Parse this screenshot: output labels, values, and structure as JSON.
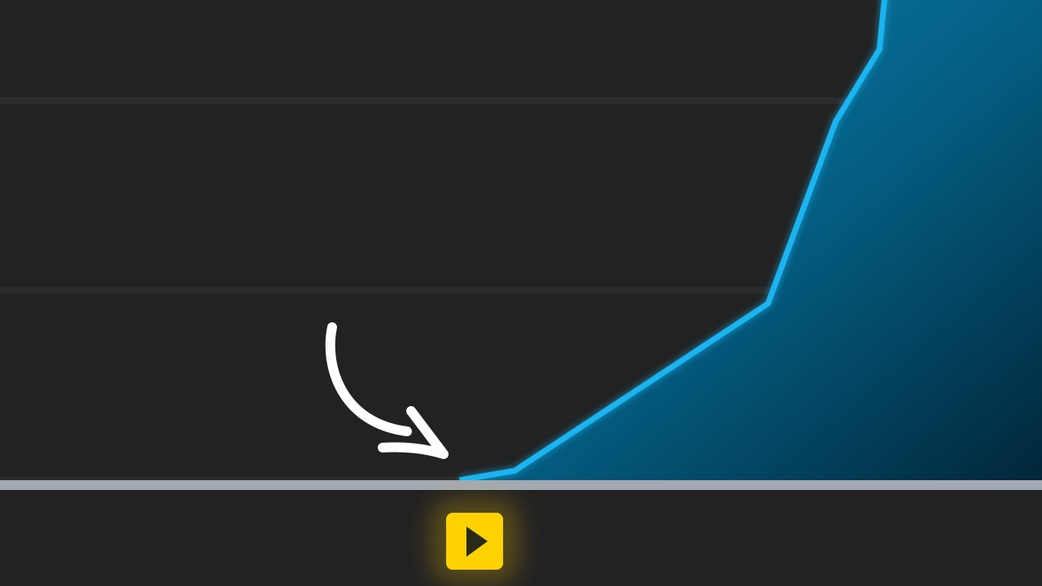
{
  "chart_data": {
    "type": "area",
    "color": "#1ab4f0",
    "x": [
      44.1,
      49.4,
      73.7,
      80.2,
      84.4,
      85.0
    ],
    "values": [
      0,
      0.05,
      0.93,
      1.89,
      2.27,
      2.6
    ],
    "xlim": [
      0,
      100
    ],
    "ylim": [
      0,
      2.53
    ],
    "yticks": [
      0,
      1,
      2
    ],
    "grid": true
  }
}
